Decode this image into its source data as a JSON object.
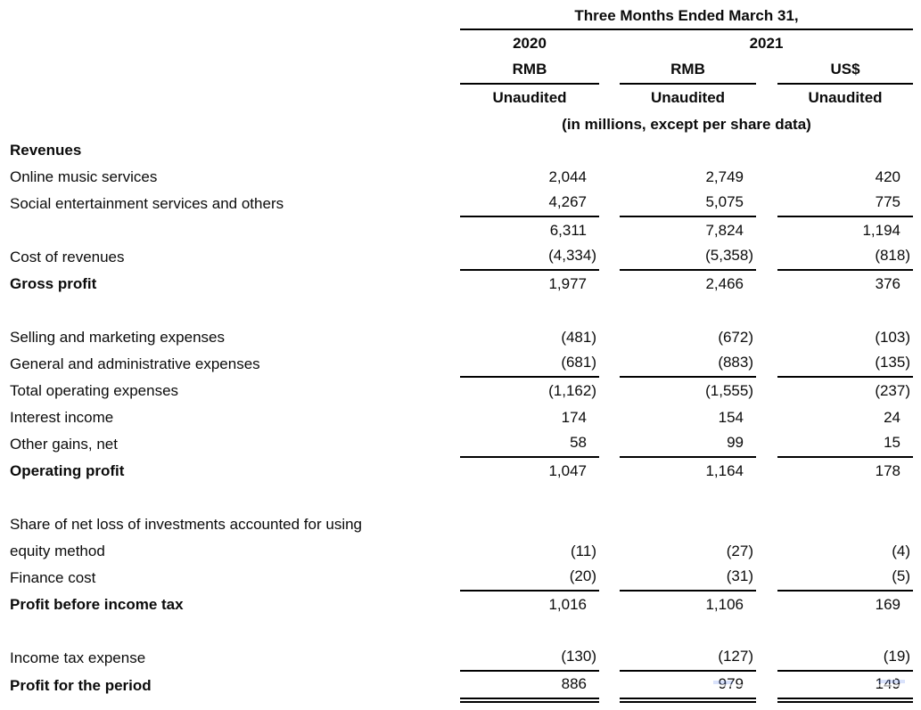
{
  "header": {
    "title": "Three Months Ended March 31,",
    "years": [
      "2020",
      "2021"
    ],
    "currencies": [
      "RMB",
      "RMB",
      "US$"
    ],
    "audit_status": [
      "Unaudited",
      "Unaudited",
      "Unaudited"
    ],
    "note": "(in millions, except per share data)"
  },
  "columns": [
    "2020 RMB",
    "2021 RMB",
    "2021 US$"
  ],
  "table": {
    "rows": [
      {
        "label": "Revenues",
        "bold": true,
        "values": [
          "",
          "",
          ""
        ]
      },
      {
        "label": "Online music services",
        "values": [
          "2,044",
          "2,749",
          "420"
        ]
      },
      {
        "label": "Social entertainment services and others",
        "values": [
          "4,267",
          "5,075",
          "775"
        ],
        "rule": true
      },
      {
        "label": "",
        "values": [
          "6,311",
          "7,824",
          "1,194"
        ]
      },
      {
        "label": "Cost of revenues",
        "values": [
          "(4,334)",
          "(5,358)",
          "(818)"
        ],
        "rule": true
      },
      {
        "label": "Gross profit",
        "bold": true,
        "values": [
          "1,977",
          "2,466",
          "376"
        ]
      },
      {
        "spacer": true
      },
      {
        "label": "Selling and marketing expenses",
        "values": [
          "(481)",
          "(672)",
          "(103)"
        ]
      },
      {
        "label": "General and administrative expenses",
        "values": [
          "(681)",
          "(883)",
          "(135)"
        ],
        "rule": true
      },
      {
        "label": "Total operating expenses",
        "values": [
          "(1,162)",
          "(1,555)",
          "(237)"
        ]
      },
      {
        "label": "Interest income",
        "values": [
          "174",
          "154",
          "24"
        ]
      },
      {
        "label": "Other gains, net",
        "values": [
          "58",
          "99",
          "15"
        ],
        "rule": true
      },
      {
        "label": "Operating profit",
        "bold": true,
        "values": [
          "1,047",
          "1,164",
          "178"
        ]
      },
      {
        "spacer": true
      },
      {
        "label": "Share of net loss of investments accounted for using",
        "values": [
          "",
          "",
          ""
        ]
      },
      {
        "label": "equity method",
        "values": [
          "(11)",
          "(27)",
          "(4)"
        ]
      },
      {
        "label": "Finance cost",
        "values": [
          "(20)",
          "(31)",
          "(5)"
        ],
        "rule": true
      },
      {
        "label": "Profit before income tax",
        "bold": true,
        "values": [
          "1,016",
          "1,106",
          "169"
        ]
      },
      {
        "spacer": true
      },
      {
        "label": "Income tax expense",
        "values": [
          "(130)",
          "(127)",
          "(19)"
        ],
        "rule": true
      },
      {
        "label": "Profit for the period",
        "bold": true,
        "values": [
          "886",
          "979",
          "149"
        ],
        "double_rule": true
      }
    ]
  },
  "colors": {
    "text": "#0b0b0b",
    "rule": "#000000",
    "background": "#ffffff"
  }
}
